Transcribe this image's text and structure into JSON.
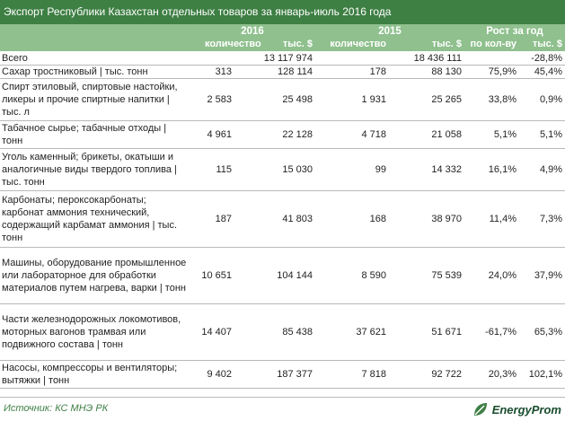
{
  "title": "Экспорт Республики Казахстан отдельных товаров за январь-июль 2016 года",
  "header": {
    "year_2016": "2016",
    "year_2015": "2015",
    "growth": "Рост за год",
    "qty": "количество",
    "usd": "тыс. $",
    "by_qty": "по кол-ву",
    "usd_growth": "тыс. $"
  },
  "rows": [
    {
      "name": "Всего",
      "q16": "",
      "v16": "13 117 974",
      "q15": "",
      "v15": "18 436 111",
      "gq": "",
      "gv": "-28,8%"
    },
    {
      "name": "Сахар тростниковый | тыс. тонн",
      "q16": "313",
      "v16": "128 114",
      "q15": "178",
      "v15": "88 130",
      "gq": "75,9%",
      "gv": "45,4%"
    },
    {
      "name": "Спирт этиловый, спиртовые настойки, ликеры и прочие спиртные напитки | тыс. л",
      "q16": "2 583",
      "v16": "25 498",
      "q15": "1 931",
      "v15": "25 265",
      "gq": "33,8%",
      "gv": "0,9%"
    },
    {
      "name": "Табачное сырье; табачные отходы | тонн",
      "q16": "4 961",
      "v16": "22 128",
      "q15": "4 718",
      "v15": "21 058",
      "gq": "5,1%",
      "gv": "5,1%"
    },
    {
      "name": "Уголь каменный; брикеты, окатыши и аналогичные виды твердого топлива | тыс. тонн",
      "q16": "115",
      "v16": "15 030",
      "q15": "99",
      "v15": "14 332",
      "gq": "16,1%",
      "gv": "4,9%"
    },
    {
      "name": "Карбонаты; пероксокарбонаты; карбонат аммония технический, содержащий карбамат аммония | тыс. тонн",
      "q16": "187",
      "v16": "41 803",
      "q15": "168",
      "v15": "38 970",
      "gq": "11,4%",
      "gv": "7,3%"
    },
    {
      "name": "Машины, оборудование промышленное или лабораторное для обработки материалов путем нагрева, варки | тонн",
      "q16": "10 651",
      "v16": "104 144",
      "q15": "8 590",
      "v15": "75 539",
      "gq": "24,0%",
      "gv": "37,9%"
    },
    {
      "name": "Части железнодорожных локомотивов, моторных вагонов трамвая или подвижного состава | тонн",
      "q16": "14 407",
      "v16": "85 438",
      "q15": "37 621",
      "v15": "51 671",
      "gq": "-61,7%",
      "gv": "65,3%"
    },
    {
      "name": "Насосы, компрессоры и вентиляторы; вытяжки | тонн",
      "q16": "9 402",
      "v16": "187 377",
      "q15": "7 818",
      "v15": "92 722",
      "gq": "20,3%",
      "gv": "102,1%"
    }
  ],
  "footer": {
    "source": "Источник: КС МНЭ РК",
    "logo_text": "EnergyProm",
    "logo_icon": "leaf-logo-icon",
    "brand_color": "#3e7f44",
    "header_color": "#8fc08e"
  }
}
